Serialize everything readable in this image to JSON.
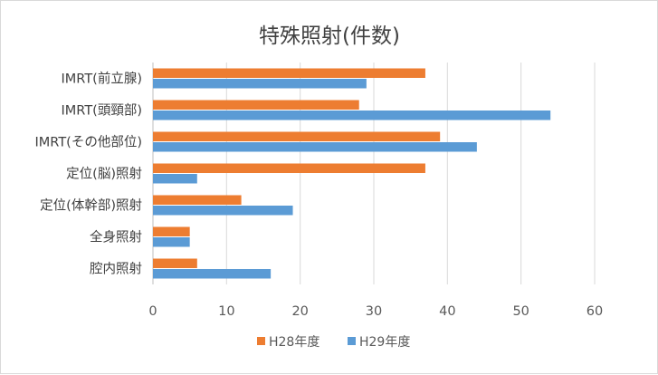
{
  "chart_data": {
    "type": "bar",
    "orientation": "horizontal",
    "title": "特殊照射(件数)",
    "categories": [
      "IMRT(前立腺)",
      "IMRT(頭頸部)",
      "IMRT(その他部位)",
      "定位(脳)照射",
      "定位(体幹部)照射",
      "全身照射",
      "腔内照射"
    ],
    "series": [
      {
        "name": "H28年度",
        "color": "#ED7D31",
        "values": [
          37,
          28,
          39,
          37,
          12,
          5,
          6
        ]
      },
      {
        "name": "H29年度",
        "color": "#5B9BD5",
        "values": [
          29,
          54,
          44,
          6,
          19,
          5,
          16
        ]
      }
    ],
    "xlim": [
      0,
      60
    ],
    "xticks": [
      "0",
      "10",
      "20",
      "30",
      "40",
      "50",
      "60"
    ],
    "grid": "vertical",
    "legend_position": "bottom"
  }
}
